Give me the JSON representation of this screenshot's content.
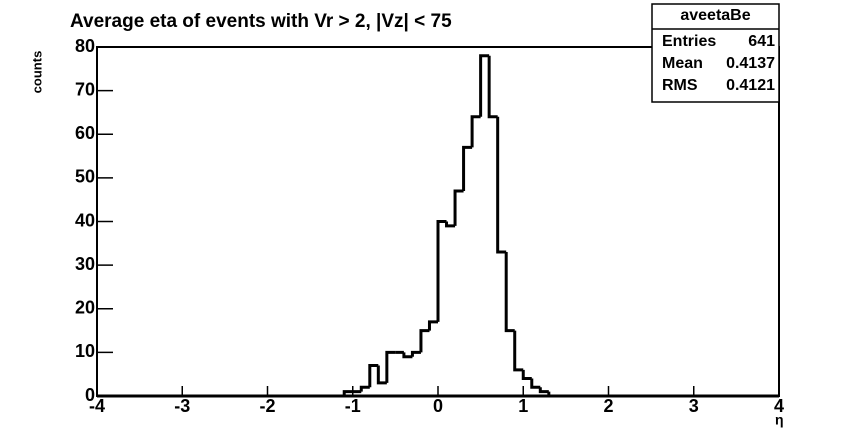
{
  "chart_data": {
    "type": "histogram",
    "title": "Average eta of events with Vr > 2, |Vz| < 75",
    "x_label": "η",
    "y_label": "counts",
    "bins": [
      -1.2,
      -1.1,
      -1.0,
      -0.9,
      -0.8,
      -0.7,
      -0.6,
      -0.5,
      -0.4,
      -0.3,
      -0.2,
      -0.1,
      0.0,
      0.1,
      0.2,
      0.3,
      0.4,
      0.5,
      0.6,
      0.7,
      0.8,
      0.9,
      1.0,
      1.1,
      1.2,
      1.3,
      1.4,
      1.5
    ],
    "values": [
      0,
      1,
      1,
      2,
      7,
      3,
      10,
      10,
      9,
      10,
      15,
      17,
      40,
      39,
      47,
      57,
      64,
      78,
      64,
      33,
      15,
      6,
      4,
      2,
      1,
      0,
      0
    ],
    "color": "#000000",
    "xlim": [
      -4,
      4
    ],
    "xticks": [
      -4,
      -3,
      -2,
      -1,
      0,
      1,
      2,
      3,
      4
    ],
    "ylim": [
      0,
      80
    ],
    "yticks": [
      0,
      10,
      20,
      30,
      40,
      50,
      60,
      70,
      80
    ],
    "stats": {
      "name": "aveetaBe",
      "rows": [
        [
          "Entries",
          "641"
        ],
        [
          "Mean",
          "0.4137"
        ],
        [
          "RMS",
          "0.4121"
        ]
      ]
    }
  }
}
